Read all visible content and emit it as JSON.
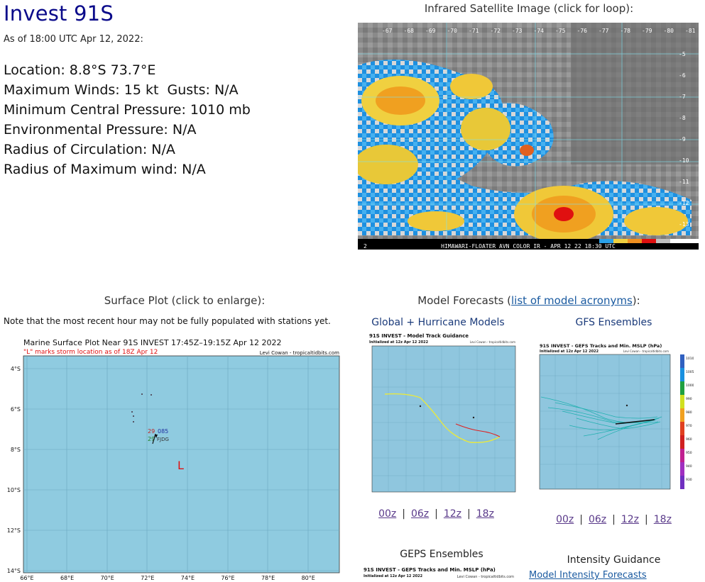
{
  "storm": {
    "name": "Invest 91S",
    "as_of": "As of 18:00 UTC Apr 12, 2022:",
    "stats": [
      "Location: 8.8°S 73.7°E",
      "Maximum Winds: 15 kt  Gusts: N/A",
      "Minimum Central Pressure: 1010 mb",
      "Environmental Pressure: N/A",
      "Radius of Circulation: N/A",
      "Radius of Maximum wind: N/A"
    ]
  },
  "ir": {
    "title": "Infrared Satellite Image (click for loop):",
    "top_labels": [
      "-67",
      "-68",
      "-69",
      "-70",
      "-71",
      "-72",
      "-73",
      "-74",
      "-75",
      "-76",
      "-77",
      "-78",
      "-79",
      "-80",
      "-81"
    ],
    "right_labels": [
      "-5",
      "-6",
      "-7",
      "-8",
      "-9",
      "-10",
      "-11",
      "-12",
      "-13"
    ],
    "banner": "HIMAWARI-FLOATER AVN COLOR IR - APR 12 22 18:30 UTC",
    "banner_left": "2"
  },
  "surface": {
    "title": "Surface Plot (click to enlarge):",
    "note": "Note that the most recent hour may not be fully populated with stations yet.",
    "plot_title": "Marine Surface Plot Near 91S INVEST 17:45Z–19:15Z Apr 12 2022",
    "plot_subtitle": "\"L\" marks storm location as of 18Z Apr 12",
    "credit": "Levi Cowan - tropicaltidbits.com",
    "lat_labels": [
      "4°S",
      "6°S",
      "8°S",
      "10°S",
      "12°S",
      "14°S"
    ],
    "lon_labels": [
      "66°E",
      "68°E",
      "70°E",
      "72°E",
      "74°E",
      "76°E",
      "78°E",
      "80°E"
    ],
    "station": {
      "temp": "29",
      "dew": "29",
      "pressure": "085",
      "id": "FJDG"
    },
    "storm_marker": "L"
  },
  "models": {
    "title_prefix": "Model Forecasts (",
    "acronyms_link": "list of model acronyms",
    "title_suffix": "):",
    "global": {
      "title": "Global + Hurricane Models",
      "plot_title": "91S INVEST - Model Track Guidance",
      "plot_subtitle": "Initialized at 12z Apr 12 2022",
      "credit": "Levi Cowan - tropicaltidbits.com"
    },
    "gfs": {
      "title": "GFS Ensembles",
      "plot_title": "91S INVEST - GEFS Tracks and Min. MSLP (hPa)",
      "plot_subtitle": "Initialized at 12z Apr 12 2022",
      "credit": "Levi Cowan - tropicaltidbits.com",
      "colorbar": [
        "1010",
        "1005",
        "1000",
        "990",
        "980",
        "970",
        "960",
        "950",
        "940",
        "930"
      ]
    },
    "runs_left": [
      "00z",
      "06z",
      "12z",
      "18z"
    ],
    "runs_right": [
      "00z",
      "06z",
      "12z",
      "18z"
    ],
    "geps": {
      "title": "GEPS Ensembles",
      "plot_title": "91S INVEST - GEPS Tracks and Min. MSLP (hPa)",
      "plot_subtitle": "Initialized at 12z Apr 12 2022",
      "credit": "Levi Cowan - tropicaltidbits.com"
    },
    "intensity": {
      "title": "Intensity Guidance",
      "link": "Model Intensity Forecasts"
    }
  }
}
